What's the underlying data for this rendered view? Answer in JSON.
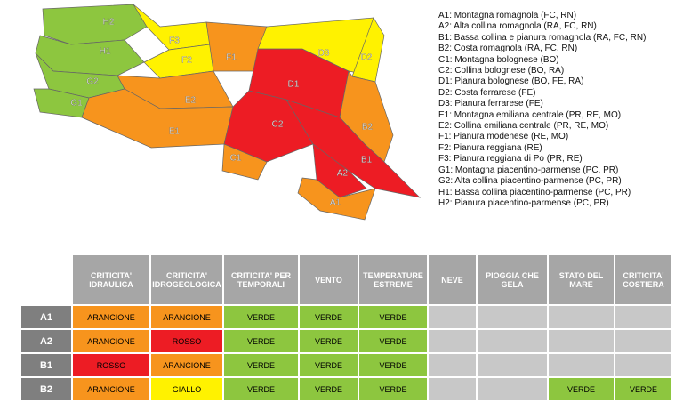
{
  "map": {
    "zones": [
      {
        "label": "H2",
        "color": "#8dc63f"
      },
      {
        "label": "H1",
        "color": "#8dc63f"
      },
      {
        "label": "G2",
        "color": "#8dc63f"
      },
      {
        "label": "G1",
        "color": "#8dc63f"
      },
      {
        "label": "F3",
        "color": "#fff200"
      },
      {
        "label": "F2",
        "color": "#fff200"
      },
      {
        "label": "F1",
        "color": "#f7941d"
      },
      {
        "label": "E2",
        "color": "#f7941d"
      },
      {
        "label": "E1",
        "color": "#f7941d"
      },
      {
        "label": "D1",
        "color": "#ed1c24"
      },
      {
        "label": "D3",
        "color": "#fff200"
      },
      {
        "label": "D2",
        "color": "#fff200"
      },
      {
        "label": "C2",
        "color": "#ed1c24"
      },
      {
        "label": "C1",
        "color": "#f7941d"
      },
      {
        "label": "B2",
        "color": "#f7941d"
      },
      {
        "label": "B1",
        "color": "#ed1c24"
      },
      {
        "label": "A2",
        "color": "#ed1c24"
      },
      {
        "label": "A1",
        "color": "#f7941d"
      }
    ]
  },
  "legend": [
    "A1: Montagna romagnola (FC, RN)",
    "A2: Alta collina romagnola (RA, FC, RN)",
    "B1: Bassa collina e pianura romagnola (RA, FC, RN)",
    "B2: Costa romagnola (RA, FC, RN)",
    "C1: Montagna bolognese (BO)",
    "C2: Collina bolognese (BO, RA)",
    "D1: Pianura bolognese (BO, FE, RA)",
    "D2: Costa ferrarese (FE)",
    "D3: Pianura ferrarese (FE)",
    "E1: Montagna emiliana centrale (PR, RE, MO)",
    "E2: Collina emiliana centrale (PR, RE, MO)",
    "F1: Pianura modenese (RE, MO)",
    "F2: Pianura reggiana (RE)",
    "F3: Pianura reggiana di Po (PR, RE)",
    "G1: Montagna piacentino-parmense (PC, PR)",
    "G2: Alta collina piacentino-parmense (PC, PR)",
    "H1: Bassa collina piacentino-parmense (PC, PR)",
    "H2: Pianura piacentino-parmense (PC, PR)"
  ],
  "table": {
    "headers": [
      "CRITICITA' IDRAULICA",
      "CRITICITA' IDROGEOLOGICA",
      "CRITICITA' PER TEMPORALI",
      "VENTO",
      "TEMPERATURE ESTREME",
      "NEVE",
      "PIOGGIA CHE GELA",
      "STATO DEL MARE",
      "CRITICITA' COSTIERA"
    ],
    "cell_colors": {
      "VERDE": "#8dc63f",
      "ARANCIONE": "#f7941d",
      "ROSSO": "#ed1c24",
      "GIALLO": "#fff200"
    },
    "rows": [
      {
        "zone": "A1",
        "cells": [
          "ARANCIONE",
          "ARANCIONE",
          "VERDE",
          "VERDE",
          "VERDE",
          null,
          null,
          null,
          null
        ]
      },
      {
        "zone": "A2",
        "cells": [
          "ARANCIONE",
          "ROSSO",
          "VERDE",
          "VERDE",
          "VERDE",
          null,
          null,
          null,
          null
        ]
      },
      {
        "zone": "B1",
        "cells": [
          "ROSSO",
          "ARANCIONE",
          "VERDE",
          "VERDE",
          "VERDE",
          null,
          null,
          null,
          null
        ]
      },
      {
        "zone": "B2",
        "cells": [
          "ARANCIONE",
          "GIALLO",
          "VERDE",
          "VERDE",
          "VERDE",
          null,
          null,
          "VERDE",
          "VERDE"
        ]
      }
    ]
  }
}
